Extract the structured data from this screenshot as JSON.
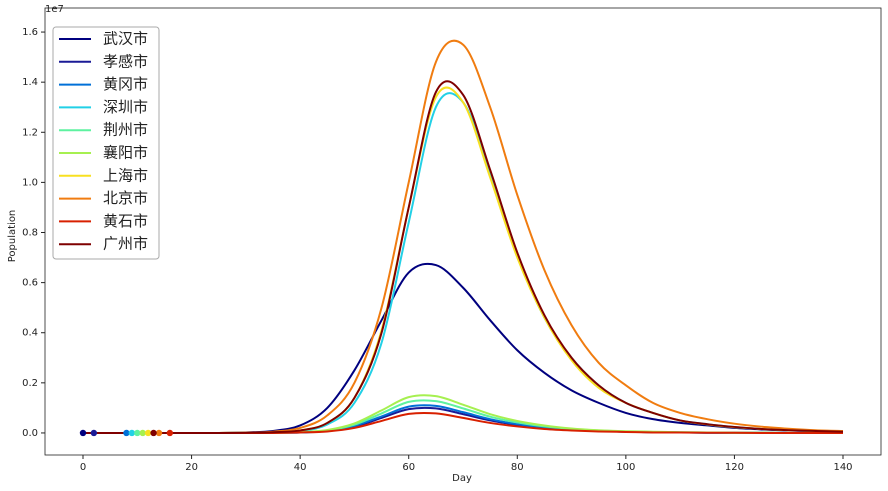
{
  "chart_data": {
    "type": "line",
    "xlabel": "Day",
    "ylabel": "Population",
    "y_offset_label": "1e7",
    "x": [
      0,
      5,
      10,
      15,
      20,
      25,
      30,
      35,
      40,
      45,
      50,
      55,
      60,
      65,
      70,
      75,
      80,
      85,
      90,
      95,
      100,
      105,
      110,
      115,
      120,
      125,
      130,
      135,
      140
    ],
    "xlim": [
      -7,
      147
    ],
    "xticks": [
      0,
      20,
      40,
      60,
      80,
      100,
      120,
      140
    ],
    "ylim": [
      -0.088,
      1.696
    ],
    "yticks": [
      {
        "value": 0,
        "label": "0.0"
      },
      {
        "value": 0.2,
        "label": "0.2"
      },
      {
        "value": 0.4,
        "label": "0.4"
      },
      {
        "value": 0.6,
        "label": "0.6"
      },
      {
        "value": 0.8,
        "label": "0.8"
      },
      {
        "value": 1,
        "label": "1.0"
      },
      {
        "value": 1.2,
        "label": "1.2"
      },
      {
        "value": 1.4,
        "label": "1.4"
      },
      {
        "value": 1.6,
        "label": "1.6"
      }
    ],
    "legend": "upper left",
    "series": [
      {
        "name": "武汉市",
        "color": "#00007f",
        "start_day": 0,
        "values": [
          0,
          0,
          0,
          0,
          0,
          0,
          0.002,
          0.008,
          0.03,
          0.1,
          0.25,
          0.45,
          0.64,
          0.67,
          0.58,
          0.45,
          0.33,
          0.24,
          0.17,
          0.12,
          0.08,
          0.055,
          0.04,
          0.03,
          0.02,
          0.014,
          0.01,
          0.007,
          0.005
        ]
      },
      {
        "name": "孝感市",
        "color": "#1a1a96",
        "start_day": 2,
        "values": [
          0,
          0,
          0,
          0,
          0,
          0,
          0,
          0.001,
          0.002,
          0.008,
          0.025,
          0.06,
          0.095,
          0.098,
          0.075,
          0.05,
          0.032,
          0.02,
          0.012,
          0.008,
          0.005,
          0.003,
          0.002,
          0.001,
          0.001,
          0.001,
          0,
          0,
          0
        ]
      },
      {
        "name": "黄冈市",
        "color": "#0070d8",
        "start_day": 8,
        "values": [
          0,
          0,
          0,
          0,
          0,
          0,
          0,
          0.001,
          0.002,
          0.009,
          0.028,
          0.066,
          0.105,
          0.108,
          0.083,
          0.055,
          0.035,
          0.022,
          0.013,
          0.008,
          0.005,
          0.003,
          0.002,
          0.001,
          0.001,
          0.001,
          0,
          0,
          0
        ]
      },
      {
        "name": "深圳市",
        "color": "#22d0e6",
        "start_day": 9,
        "values": [
          0,
          0,
          0,
          0,
          0,
          0,
          0.001,
          0.002,
          0.008,
          0.034,
          0.12,
          0.36,
          0.84,
          1.3,
          1.32,
          1.04,
          0.71,
          0.46,
          0.3,
          0.19,
          0.12,
          0.08,
          0.05,
          0.035,
          0.024,
          0.016,
          0.011,
          0.008,
          0.005
        ]
      },
      {
        "name": "荆州市",
        "color": "#5ef2a0",
        "start_day": 10,
        "values": [
          0,
          0,
          0,
          0,
          0,
          0,
          0,
          0.001,
          0.003,
          0.01,
          0.033,
          0.078,
          0.124,
          0.127,
          0.098,
          0.065,
          0.042,
          0.026,
          0.016,
          0.01,
          0.006,
          0.004,
          0.003,
          0.002,
          0.001,
          0.001,
          0,
          0,
          0
        ]
      },
      {
        "name": "襄阳市",
        "color": "#a6f050",
        "start_day": 11,
        "values": [
          0,
          0,
          0,
          0,
          0,
          0,
          0,
          0.001,
          0.003,
          0.012,
          0.038,
          0.09,
          0.143,
          0.147,
          0.113,
          0.075,
          0.048,
          0.03,
          0.018,
          0.011,
          0.007,
          0.005,
          0.003,
          0.002,
          0.001,
          0.001,
          0,
          0,
          0
        ]
      },
      {
        "name": "上海市",
        "color": "#f8e020",
        "start_day": 12,
        "values": [
          0,
          0,
          0,
          0,
          0,
          0,
          0.001,
          0.003,
          0.01,
          0.04,
          0.14,
          0.41,
          0.9,
          1.34,
          1.32,
          1.02,
          0.7,
          0.46,
          0.29,
          0.18,
          0.12,
          0.08,
          0.05,
          0.034,
          0.023,
          0.016,
          0.011,
          0.008,
          0.005
        ]
      },
      {
        "name": "北京市",
        "color": "#f07c10",
        "start_day": 14,
        "values": [
          0,
          0,
          0,
          0,
          0,
          0,
          0.001,
          0.005,
          0.02,
          0.07,
          0.2,
          0.5,
          1.0,
          1.48,
          1.55,
          1.3,
          0.95,
          0.65,
          0.43,
          0.28,
          0.19,
          0.12,
          0.08,
          0.055,
          0.037,
          0.025,
          0.017,
          0.011,
          0.008
        ]
      },
      {
        "name": "黄石市",
        "color": "#d82000",
        "start_day": 16,
        "values": [
          0,
          0,
          0,
          0,
          0,
          0,
          0,
          0,
          0.002,
          0.006,
          0.02,
          0.048,
          0.076,
          0.078,
          0.06,
          0.04,
          0.026,
          0.016,
          0.01,
          0.006,
          0.004,
          0.002,
          0.002,
          0.001,
          0.001,
          0,
          0,
          0,
          0
        ]
      },
      {
        "name": "广州市",
        "color": "#7f0000",
        "start_day": 13,
        "values": [
          0,
          0,
          0,
          0,
          0,
          0,
          0.001,
          0.003,
          0.01,
          0.04,
          0.14,
          0.4,
          0.9,
          1.36,
          1.35,
          1.05,
          0.72,
          0.47,
          0.3,
          0.19,
          0.12,
          0.08,
          0.05,
          0.035,
          0.024,
          0.016,
          0.011,
          0.008,
          0.005
        ]
      }
    ]
  }
}
